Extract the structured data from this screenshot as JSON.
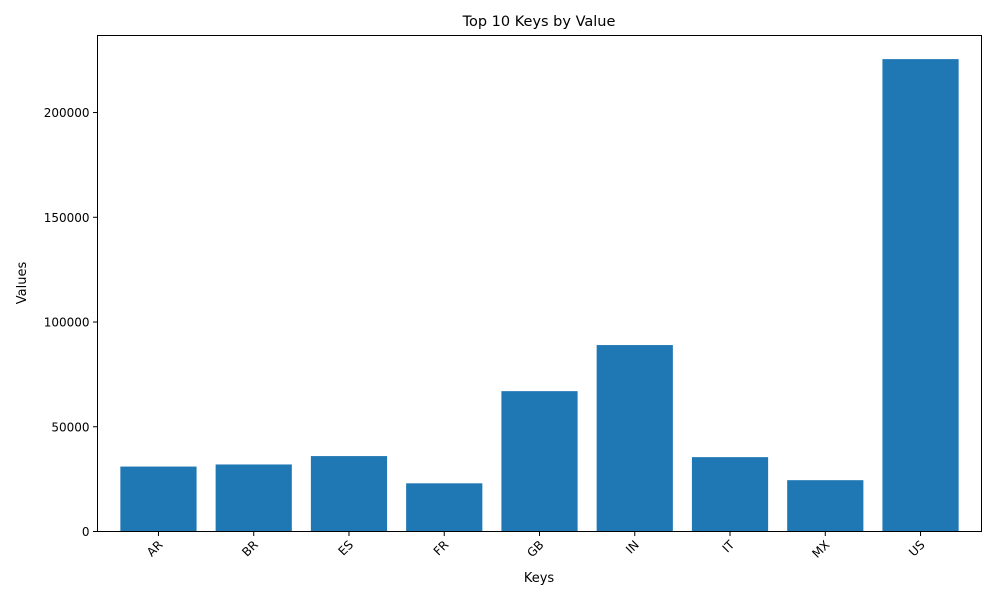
{
  "chart_data": {
    "type": "bar",
    "title": "Top 10 Keys by Value",
    "xlabel": "Keys",
    "ylabel": "Values",
    "categories": [
      "AR",
      "BR",
      "ES",
      "FR",
      "GB",
      "IN",
      "IT",
      "MX",
      "US"
    ],
    "values": [
      31000,
      32000,
      36000,
      23000,
      67000,
      89000,
      35500,
      24500,
      225500
    ],
    "ylim": [
      0,
      236775
    ],
    "yticks": [
      0,
      50000,
      100000,
      150000,
      200000
    ],
    "bar_color": "#1f77b4",
    "grid": false,
    "legend": "none"
  }
}
